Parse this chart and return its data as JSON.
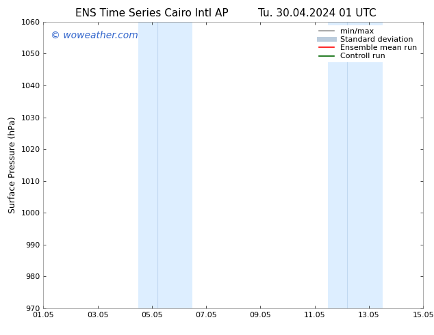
{
  "title_left": "ENS Time Series Cairo Intl AP",
  "title_right": "Tu. 30.04.2024 01 UTC",
  "ylabel": "Surface Pressure (hPa)",
  "xtick_labels": [
    "01.05",
    "03.05",
    "05.05",
    "07.05",
    "09.05",
    "11.05",
    "13.05",
    "15.05"
  ],
  "xtick_positions": [
    0,
    2,
    4,
    6,
    8,
    10,
    12,
    14
  ],
  "ylim": [
    970,
    1060
  ],
  "ytick_step": 10,
  "background_color": "#ffffff",
  "plot_bg_color": "#ffffff",
  "shaded_bands": [
    {
      "x_start": 3.5,
      "x_end": 4.2,
      "color": "#ddeeff"
    },
    {
      "x_start": 4.2,
      "x_end": 5.5,
      "color": "#ddeeff"
    },
    {
      "x_start": 10.5,
      "x_end": 11.2,
      "color": "#ddeeff"
    },
    {
      "x_start": 11.2,
      "x_end": 12.5,
      "color": "#ddeeff"
    }
  ],
  "band_dividers": [
    4.2,
    11.2
  ],
  "band_divider_color": "#c0d8f0",
  "watermark_text": "© woweather.com",
  "watermark_color": "#3366cc",
  "watermark_fontsize": 10,
  "legend_entries": [
    {
      "label": "min/max",
      "color": "#999999",
      "lw": 1.2,
      "style": "solid"
    },
    {
      "label": "Standard deviation",
      "color": "#bbccdd",
      "lw": 5,
      "style": "solid"
    },
    {
      "label": "Ensemble mean run",
      "color": "#ff0000",
      "lw": 1.2,
      "style": "solid"
    },
    {
      "label": "Controll run",
      "color": "#006600",
      "lw": 1.2,
      "style": "solid"
    }
  ],
  "title_fontsize": 11,
  "axis_label_fontsize": 9,
  "tick_fontsize": 8,
  "legend_fontsize": 8
}
